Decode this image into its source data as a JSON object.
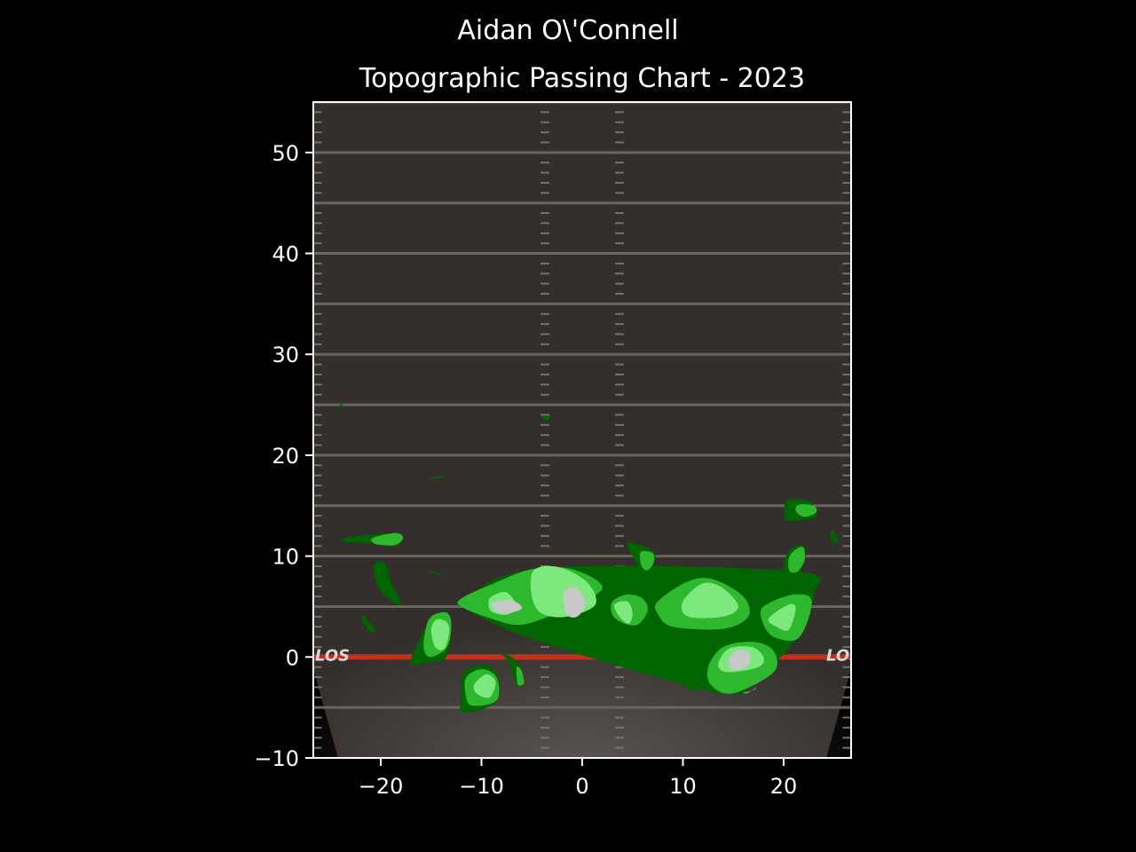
{
  "chart_data": {
    "type": "heatmap",
    "suptitle": "Aidan O\\'Connell",
    "title": "Topographic Passing Chart - 2023",
    "xlabel": "",
    "ylabel": "",
    "xlim": [
      -26.7,
      26.7
    ],
    "ylim": [
      -10,
      55
    ],
    "xticks": [
      -20,
      -10,
      0,
      10,
      20
    ],
    "yticks": [
      -10,
      0,
      10,
      20,
      30,
      40,
      50
    ],
    "xtick_labels": [
      "−20",
      "−10",
      "0",
      "10",
      "20"
    ],
    "ytick_labels": [
      "−10",
      "0",
      "10",
      "20",
      "30",
      "40",
      "50"
    ],
    "line_of_scrimmage_y": 0,
    "los_marker_text": "LOS",
    "grid": false,
    "legend": "none",
    "colors": {
      "background": "#000000",
      "field": "#342e2c",
      "yard_line": "#6b6560",
      "los_line": "#c0301a",
      "level_1": "#006400",
      "level_2": "#2db82d",
      "level_3": "#7de87d",
      "level_4": "#c8c8c8",
      "axis": "#ffffff"
    },
    "density_levels": [
      "level_1",
      "level_2",
      "level_3",
      "level_4"
    ],
    "contours": [
      {
        "level": 1,
        "points": [
          [
            -12,
            5.5
          ],
          [
            -4,
            8.8
          ],
          [
            21,
            8.5
          ],
          [
            23,
            6.2
          ],
          [
            21,
            1.5
          ],
          [
            17,
            -2.5
          ],
          [
            15,
            -3.7
          ],
          [
            11,
            -3
          ],
          [
            4,
            -1
          ],
          [
            -1,
            0.5
          ],
          [
            -7,
            2.5
          ],
          [
            -12,
            5
          ]
        ]
      },
      {
        "level": 2,
        "points": [
          [
            -12,
            5.8
          ],
          [
            -9,
            7.2
          ],
          [
            -5,
            8.7
          ],
          [
            -1,
            8.7
          ],
          [
            2,
            6.8
          ],
          [
            -2,
            4.6
          ],
          [
            -6,
            3.2
          ],
          [
            -9,
            3.8
          ],
          [
            -12,
            5
          ]
        ]
      },
      {
        "level": 3,
        "points": [
          [
            -9,
            6
          ],
          [
            -7.5,
            6.4
          ],
          [
            -6.5,
            5
          ],
          [
            -7.5,
            4.2
          ],
          [
            -9,
            4.5
          ],
          [
            -9.3,
            5.3
          ]
        ]
      },
      {
        "level": 4,
        "points": [
          [
            -9,
            5.3
          ],
          [
            -7,
            5.6
          ],
          [
            -6,
            4.8
          ],
          [
            -8,
            4.3
          ]
        ]
      },
      {
        "level": 3,
        "points": [
          [
            -4.8,
            8.6
          ],
          [
            -2.3,
            8.9
          ],
          [
            0.5,
            7.4
          ],
          [
            1.3,
            5.2
          ],
          [
            -1.5,
            4
          ],
          [
            -4,
            4.3
          ],
          [
            -5,
            6
          ]
        ]
      },
      {
        "level": 4,
        "points": [
          [
            -1.8,
            6.5
          ],
          [
            -0.5,
            6.8
          ],
          [
            0.3,
            5.3
          ],
          [
            -0.5,
            4
          ],
          [
            -1.6,
            4.3
          ]
        ]
      },
      {
        "level": 2,
        "points": [
          [
            3,
            5.5
          ],
          [
            4.5,
            6.2
          ],
          [
            6,
            5.8
          ],
          [
            6.5,
            4.6
          ],
          [
            5.5,
            3.2
          ],
          [
            4,
            3.4
          ],
          [
            3,
            4.2
          ]
        ]
      },
      {
        "level": 3,
        "points": [
          [
            3.2,
            5.2
          ],
          [
            4.5,
            5.5
          ],
          [
            5,
            4.3
          ],
          [
            4.6,
            3.3
          ],
          [
            3.7,
            4
          ]
        ]
      },
      {
        "level": 2,
        "points": [
          [
            7.5,
            5.5
          ],
          [
            10.5,
            7.5
          ],
          [
            13,
            7.7
          ],
          [
            16,
            6
          ],
          [
            16.5,
            4
          ],
          [
            14,
            2.8
          ],
          [
            9,
            3
          ],
          [
            7.5,
            4.3
          ]
        ]
      },
      {
        "level": 3,
        "points": [
          [
            10,
            5.5
          ],
          [
            12,
            7.3
          ],
          [
            14,
            6.8
          ],
          [
            15.5,
            5
          ],
          [
            14,
            4
          ],
          [
            10.5,
            4
          ]
        ]
      },
      {
        "level": 2,
        "points": [
          [
            18,
            5
          ],
          [
            21,
            6.2
          ],
          [
            22.8,
            5.5
          ],
          [
            21.5,
            1.9
          ],
          [
            19,
            2
          ],
          [
            17.9,
            3.5
          ]
        ]
      },
      {
        "level": 3,
        "points": [
          [
            18.5,
            3.8
          ],
          [
            20.5,
            5.2
          ],
          [
            21.2,
            4.8
          ],
          [
            20.5,
            2.7
          ],
          [
            19.3,
            3
          ]
        ]
      },
      {
        "level": 2,
        "points": [
          [
            12.5,
            -1
          ],
          [
            14,
            1
          ],
          [
            17,
            1.5
          ],
          [
            19,
            0.6
          ],
          [
            19,
            -1.5
          ],
          [
            15,
            -3.6
          ],
          [
            12.8,
            -2.8
          ]
        ]
      },
      {
        "level": 3,
        "points": [
          [
            13.5,
            -0.8
          ],
          [
            14.5,
            0.8
          ],
          [
            16.8,
            1
          ],
          [
            18,
            0
          ],
          [
            17.5,
            -1
          ],
          [
            14.5,
            -1.5
          ]
        ]
      },
      {
        "level": 4,
        "points": [
          [
            14.5,
            -0.3
          ],
          [
            15.6,
            0.7
          ],
          [
            16.6,
            0.3
          ],
          [
            16.5,
            -0.8
          ],
          [
            15,
            -1.3
          ]
        ]
      },
      {
        "level": 1,
        "points": [
          [
            9,
            -2
          ],
          [
            10,
            -2.8
          ],
          [
            11,
            -3.4
          ],
          [
            11.3,
            -3
          ],
          [
            10,
            -2.2
          ]
        ]
      },
      {
        "level": 2,
        "points": [
          [
            16,
            -3.5
          ],
          [
            17,
            -3.3
          ],
          [
            17.3,
            -3
          ],
          [
            16.4,
            -3.6
          ]
        ]
      },
      {
        "level": 1,
        "points": [
          [
            -15,
            3.8
          ],
          [
            -13.5,
            4.5
          ],
          [
            -13,
            3
          ],
          [
            -13.5,
            0
          ],
          [
            -15,
            -0.5
          ],
          [
            -17,
            -0.7
          ],
          [
            -16.5,
            1
          ],
          [
            -15.5,
            3
          ]
        ]
      },
      {
        "level": 2,
        "points": [
          [
            -15,
            4
          ],
          [
            -13.5,
            4.4
          ],
          [
            -13,
            3.3
          ],
          [
            -13.4,
            1
          ],
          [
            -15,
            0
          ],
          [
            -15.7,
            0.7
          ],
          [
            -15.6,
            2.5
          ]
        ]
      },
      {
        "level": 3,
        "points": [
          [
            -14.5,
            3.7
          ],
          [
            -13.5,
            3.5
          ],
          [
            -13.2,
            2.5
          ],
          [
            -13.7,
            0.8
          ],
          [
            -14.6,
            1
          ],
          [
            -15,
            2.7
          ]
        ]
      },
      {
        "level": 1,
        "points": [
          [
            -11.8,
            -1.6
          ],
          [
            -10,
            -0.8
          ],
          [
            -8.5,
            -1.6
          ],
          [
            -8.5,
            -4.4
          ],
          [
            -11.8,
            -5.5
          ],
          [
            -12,
            -3.5
          ]
        ]
      },
      {
        "level": 2,
        "points": [
          [
            -11.5,
            -2
          ],
          [
            -10,
            -1.2
          ],
          [
            -8.5,
            -2
          ],
          [
            -8.5,
            -4.3
          ],
          [
            -11,
            -4.8
          ],
          [
            -11.6,
            -3.5
          ]
        ]
      },
      {
        "level": 3,
        "points": [
          [
            -10.7,
            -2.7
          ],
          [
            -9.5,
            -1.7
          ],
          [
            -8.6,
            -2.5
          ],
          [
            -9.2,
            -4
          ],
          [
            -10.5,
            -3.6
          ]
        ]
      },
      {
        "level": 1,
        "points": [
          [
            -8,
            0.3
          ],
          [
            -7,
            0
          ],
          [
            -6.2,
            -1
          ],
          [
            -5.8,
            -2.6
          ],
          [
            -6.5,
            -2.8
          ],
          [
            -7.3,
            -0.5
          ]
        ]
      },
      {
        "level": 2,
        "points": [
          [
            -6.5,
            -1
          ],
          [
            -6,
            -1.4
          ],
          [
            -5.8,
            -2.6
          ],
          [
            -6.4,
            -2.7
          ]
        ]
      },
      {
        "level": 1,
        "points": [
          [
            -20.5,
            9.4
          ],
          [
            -19.5,
            9.2
          ],
          [
            -19,
            7.5
          ],
          [
            -18,
            5.5
          ],
          [
            -18.5,
            5.3
          ],
          [
            -20,
            6.5
          ],
          [
            -20.6,
            8
          ]
        ]
      },
      {
        "level": 1,
        "points": [
          [
            -21.8,
            4.1
          ],
          [
            -21.2,
            3.5
          ],
          [
            -20.5,
            2.6
          ],
          [
            -21,
            2.5
          ],
          [
            -21.8,
            3.5
          ]
        ]
      },
      {
        "level": 1,
        "points": [
          [
            -23.5,
            11.8
          ],
          [
            -20,
            12.2
          ],
          [
            -18,
            12
          ],
          [
            -18.5,
            11
          ],
          [
            -21,
            11.3
          ],
          [
            -23.4,
            11.4
          ]
        ]
      },
      {
        "level": 2,
        "points": [
          [
            -20.8,
            11.8
          ],
          [
            -18.5,
            12.3
          ],
          [
            -17.8,
            11.8
          ],
          [
            -18.6,
            11.1
          ],
          [
            -20.5,
            11.2
          ]
        ]
      },
      {
        "level": 1,
        "points": [
          [
            -15.5,
            8.6
          ],
          [
            -14.2,
            8.3
          ],
          [
            -13.8,
            8
          ],
          [
            -15,
            8.4
          ]
        ]
      },
      {
        "level": 1,
        "points": [
          [
            -15,
            17.6
          ],
          [
            -14,
            17.8
          ],
          [
            -13.8,
            18
          ],
          [
            -14.8,
            17.8
          ]
        ]
      },
      {
        "level": 1,
        "points": [
          [
            -24.2,
            14.5
          ],
          [
            -23.8,
            14.2
          ],
          [
            -23.6,
            14
          ],
          [
            -24,
            14.3
          ]
        ]
      },
      {
        "level": 1,
        "points": [
          [
            -24.4,
            24.5
          ],
          [
            -24,
            25
          ],
          [
            -23.6,
            25.3
          ],
          [
            -24,
            24.8
          ]
        ]
      },
      {
        "level": 1,
        "points": [
          [
            -4,
            23.8
          ],
          [
            -3.2,
            23.9
          ],
          [
            -3.4,
            23.5
          ],
          [
            -3.9,
            23.5
          ]
        ]
      },
      {
        "level": 1,
        "points": [
          [
            4.5,
            11.3
          ],
          [
            6.5,
            10.8
          ],
          [
            7.3,
            10
          ],
          [
            6.7,
            8.5
          ],
          [
            5.8,
            8.7
          ],
          [
            5,
            10
          ]
        ]
      },
      {
        "level": 2,
        "points": [
          [
            5.8,
            10.4
          ],
          [
            7,
            10.3
          ],
          [
            7.1,
            9.4
          ],
          [
            6.5,
            8.6
          ],
          [
            5.9,
            9
          ]
        ]
      },
      {
        "level": 1,
        "points": [
          [
            9.2,
            9
          ],
          [
            9.5,
            9
          ],
          [
            9.4,
            8.2
          ],
          [
            9.2,
            8.3
          ]
        ]
      },
      {
        "level": 1,
        "points": [
          [
            20.3,
            15.5
          ],
          [
            22,
            15.6
          ],
          [
            23,
            15
          ],
          [
            23.2,
            13.9
          ],
          [
            21.5,
            13.5
          ],
          [
            20.2,
            13.6
          ],
          [
            20.1,
            14.5
          ]
        ]
      },
      {
        "level": 2,
        "points": [
          [
            21.5,
            15.1
          ],
          [
            23,
            15
          ],
          [
            23.2,
            14.3
          ],
          [
            22,
            13.9
          ],
          [
            21.2,
            14.5
          ]
        ]
      },
      {
        "level": 1,
        "points": [
          [
            20.5,
            10.5
          ],
          [
            21.8,
            11.1
          ],
          [
            22.2,
            10
          ],
          [
            21.5,
            8.2
          ],
          [
            20.5,
            7.8
          ],
          [
            20,
            9
          ]
        ]
      },
      {
        "level": 2,
        "points": [
          [
            21,
            10.5
          ],
          [
            21.9,
            10.9
          ],
          [
            22.1,
            9.7
          ],
          [
            21.4,
            8.5
          ],
          [
            20.6,
            8.5
          ],
          [
            20.5,
            9.7
          ]
        ]
      },
      {
        "level": 1,
        "points": [
          [
            24.7,
            12.5
          ],
          [
            25.3,
            12
          ],
          [
            25.4,
            11.3
          ],
          [
            24.8,
            11.5
          ]
        ]
      }
    ]
  }
}
